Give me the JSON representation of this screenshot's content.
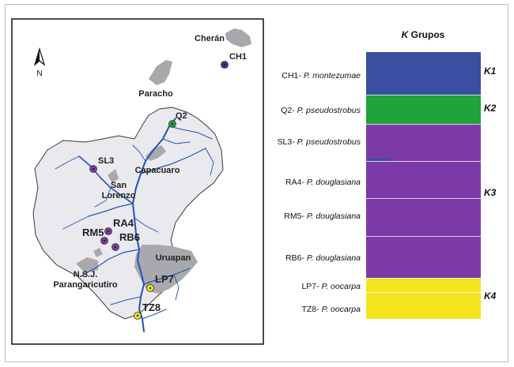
{
  "north": {
    "label": "N"
  },
  "map": {
    "towns": [
      {
        "id": "cheran",
        "label": "Cherán"
      },
      {
        "id": "paracho",
        "label": "Paracho"
      },
      {
        "id": "capacuaro",
        "label": "Capacuaro"
      },
      {
        "id": "san-lorenzo",
        "label": "San\nLorenzo"
      },
      {
        "id": "uruapan",
        "label": "Uruapan"
      },
      {
        "id": "nsj",
        "label": "N.S.J.\nParangaricutiro"
      }
    ],
    "sites": [
      {
        "code": "CH1",
        "color": "#2a3f8f"
      },
      {
        "code": "Q2",
        "color": "#1fa33a"
      },
      {
        "code": "SL3",
        "color": "#7b3a9e"
      },
      {
        "code": "RA4",
        "color": "#7b3a9e"
      },
      {
        "code": "RM5",
        "color": "#7b3a9e"
      },
      {
        "code": "RB6",
        "color": "#7b3a9e"
      },
      {
        "code": "LP7",
        "color": "#f1e21c"
      },
      {
        "code": "TZ8",
        "color": "#f1e21c"
      }
    ]
  },
  "panel": {
    "title_k": "K",
    "title_rest": " Grupos",
    "rows": [
      {
        "code": "CH1-",
        "species": "P. montezumae"
      },
      {
        "code": "Q2-",
        "species": "P. pseudostrobus"
      },
      {
        "code": "SL3-",
        "species": "P. pseudostrobus"
      },
      {
        "code": "RA4-",
        "species": "P. douglasiana"
      },
      {
        "code": "RM5-",
        "species": "P. douglasiana"
      },
      {
        "code": "RB6-",
        "species": "P. douglasiana"
      },
      {
        "code": "LP7-",
        "species": "P. oocarpa"
      },
      {
        "code": "TZ8-",
        "species": "P. oocarpa"
      }
    ],
    "groups": [
      {
        "label": "K1",
        "color": "#3a4fa0"
      },
      {
        "label": "K2",
        "color": "#1fa33a"
      },
      {
        "label": "K3",
        "color": "#7c3aa6"
      },
      {
        "label": "K4",
        "color": "#f4e41e"
      }
    ]
  }
}
